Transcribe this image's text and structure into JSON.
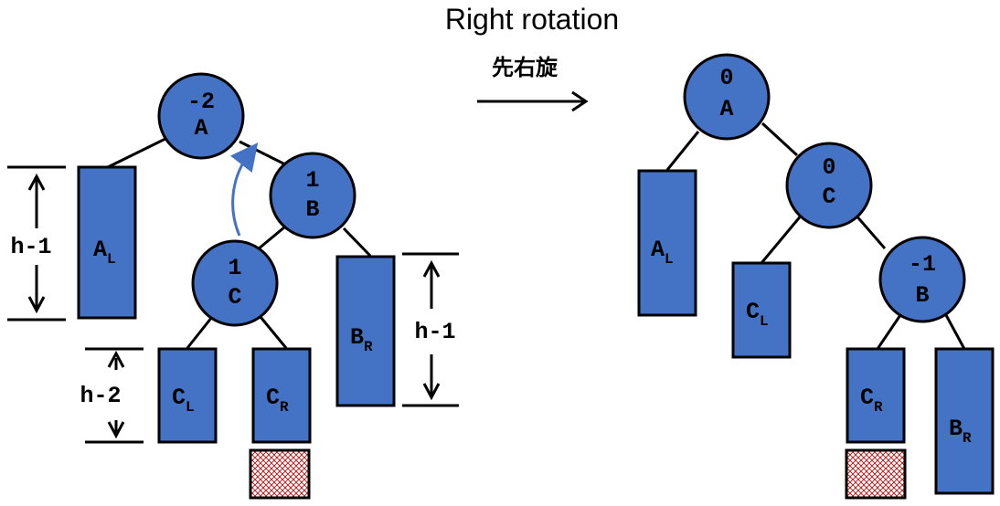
{
  "title": "Right rotation",
  "chinese_label": "先右旋",
  "colors": {
    "node_fill": "#4472c4",
    "hatch": "#c00000",
    "curve": "#4472c4"
  },
  "before": {
    "nodes": {
      "A": {
        "balance": "-2",
        "label": "A"
      },
      "B": {
        "balance": "1",
        "label": "B"
      },
      "C": {
        "balance": "1",
        "label": "C"
      }
    },
    "subtrees": {
      "AL": {
        "base": "A",
        "sub": "L"
      },
      "BR": {
        "base": "B",
        "sub": "R"
      },
      "CL": {
        "base": "C",
        "sub": "L"
      },
      "CR": {
        "base": "C",
        "sub": "R"
      }
    },
    "heights": {
      "AL": "h-1",
      "BR": "h-1",
      "CL": "h-2"
    }
  },
  "after": {
    "nodes": {
      "A": {
        "balance": "0",
        "label": "A"
      },
      "C": {
        "balance": "0",
        "label": "C"
      },
      "B": {
        "balance": "-1",
        "label": "B"
      }
    },
    "subtrees": {
      "AL": {
        "base": "A",
        "sub": "L"
      },
      "CL": {
        "base": "C",
        "sub": "L"
      },
      "CR": {
        "base": "C",
        "sub": "R"
      },
      "BR": {
        "base": "B",
        "sub": "R"
      }
    }
  }
}
